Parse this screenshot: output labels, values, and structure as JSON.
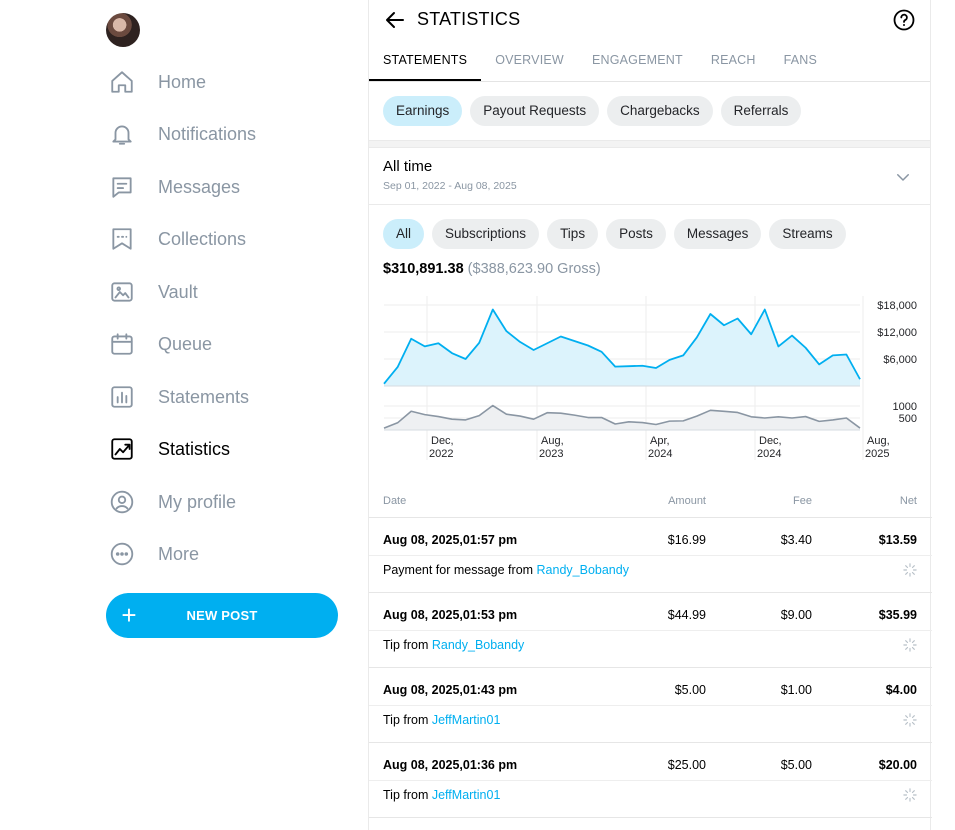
{
  "sidebar": {
    "items": [
      {
        "label": "Home",
        "icon": "home-icon"
      },
      {
        "label": "Notifications",
        "icon": "bell-icon"
      },
      {
        "label": "Messages",
        "icon": "message-icon"
      },
      {
        "label": "Collections",
        "icon": "bookmark-icon"
      },
      {
        "label": "Vault",
        "icon": "image-icon"
      },
      {
        "label": "Queue",
        "icon": "calendar-icon"
      },
      {
        "label": "Statements",
        "icon": "bar-chart-icon"
      },
      {
        "label": "Statistics",
        "icon": "trend-icon",
        "active": true
      },
      {
        "label": "My profile",
        "icon": "profile-icon"
      },
      {
        "label": "More",
        "icon": "more-icon"
      }
    ],
    "new_post": "NEW POST"
  },
  "header": {
    "title": "STATISTICS"
  },
  "tabs": [
    {
      "label": "STATEMENTS",
      "active": true
    },
    {
      "label": "OVERVIEW"
    },
    {
      "label": "ENGAGEMENT"
    },
    {
      "label": "REACH"
    },
    {
      "label": "FANS"
    }
  ],
  "statement_types": [
    {
      "label": "Earnings",
      "selected": true
    },
    {
      "label": "Payout Requests"
    },
    {
      "label": "Chargebacks"
    },
    {
      "label": "Referrals"
    }
  ],
  "period": {
    "title": "All time",
    "range": "Sep 01, 2022 - Aug 08, 2025"
  },
  "filters": [
    {
      "label": "All",
      "selected": true
    },
    {
      "label": "Subscriptions"
    },
    {
      "label": "Tips"
    },
    {
      "label": "Posts"
    },
    {
      "label": "Messages"
    },
    {
      "label": "Streams"
    }
  ],
  "totals": {
    "net": "$310,891.38",
    "gross": "($388,623.90 Gross)"
  },
  "colors": {
    "accent": "#00aff0",
    "area_fill": "#dcf3fc",
    "grey_line": "#8a96a3"
  },
  "chart_data": [
    {
      "type": "area",
      "title": "",
      "ylim": [
        0,
        20000
      ],
      "yticks": [
        "$18,000",
        "$12,000",
        "$6,000"
      ],
      "ytick_values": [
        18000,
        12000,
        6000
      ],
      "x": [
        0,
        1,
        2,
        3,
        4,
        5,
        6,
        7,
        8,
        9,
        10,
        11,
        12,
        13,
        14,
        15,
        16,
        17,
        18,
        19,
        20,
        21,
        22,
        23,
        24,
        25,
        26,
        27,
        28,
        29,
        30,
        31,
        32,
        33,
        34,
        35
      ],
      "values": [
        500,
        4200,
        10500,
        8800,
        9500,
        7300,
        6000,
        9600,
        17000,
        12200,
        9800,
        8000,
        9500,
        11000,
        10000,
        9000,
        7600,
        4300,
        4400,
        4500,
        4000,
        5800,
        6800,
        10800,
        16000,
        13500,
        15000,
        11500,
        17000,
        8800,
        11200,
        8500,
        4800,
        6800,
        7000,
        1500
      ]
    },
    {
      "type": "area",
      "title": "",
      "ylim": [
        0,
        1500
      ],
      "yticks": [
        "1000",
        "500"
      ],
      "ytick_values": [
        1000,
        500
      ],
      "values": [
        80,
        300,
        780,
        640,
        560,
        450,
        420,
        600,
        1020,
        660,
        580,
        450,
        720,
        700,
        620,
        520,
        520,
        250,
        340,
        310,
        230,
        370,
        380,
        580,
        820,
        780,
        730,
        550,
        500,
        550,
        500,
        560,
        360,
        420,
        500,
        80
      ]
    }
  ],
  "x_axis_labels": [
    {
      "l1": "Dec,",
      "l2": "2022"
    },
    {
      "l1": "Aug,",
      "l2": "2023"
    },
    {
      "l1": "Apr,",
      "l2": "2024"
    },
    {
      "l1": "Dec,",
      "l2": "2024"
    },
    {
      "l1": "Aug,",
      "l2": "2025"
    }
  ],
  "table": {
    "headers": {
      "date": "Date",
      "amount": "Amount",
      "fee": "Fee",
      "net": "Net"
    },
    "rows": [
      {
        "date": "Aug 08, 2025,01:57 pm",
        "amount": "$16.99",
        "fee": "$3.40",
        "net": "$13.59",
        "desc": "Payment for message from ",
        "user": "Randy_Bobandy"
      },
      {
        "date": "Aug 08, 2025,01:53 pm",
        "amount": "$44.99",
        "fee": "$9.00",
        "net": "$35.99",
        "desc": "Tip from ",
        "user": "Randy_Bobandy"
      },
      {
        "date": "Aug 08, 2025,01:43 pm",
        "amount": "$5.00",
        "fee": "$1.00",
        "net": "$4.00",
        "desc": "Tip from ",
        "user": "JeffMartin01"
      },
      {
        "date": "Aug 08, 2025,01:36 pm",
        "amount": "$25.00",
        "fee": "$5.00",
        "net": "$20.00",
        "desc": "Tip from ",
        "user": "JeffMartin01"
      }
    ]
  }
}
